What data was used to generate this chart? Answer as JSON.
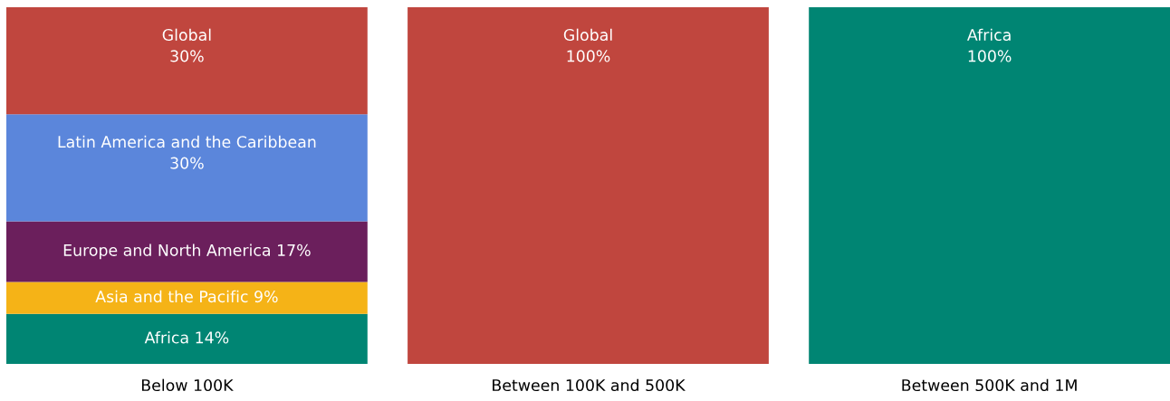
{
  "chart_data": {
    "type": "bar",
    "stacked": true,
    "categories": [
      "Below 100K",
      "Between 100K and 500K",
      "Between 500K and 1M"
    ],
    "series": [
      {
        "color": "#008573",
        "values": [
          14,
          null,
          100
        ],
        "value_labels": [
          "Africa 14%",
          null,
          "Africa\n100%"
        ]
      },
      {
        "color": "#f5b317",
        "values": [
          9,
          null,
          null
        ],
        "value_labels": [
          "Asia and the Pacific 9%",
          null,
          null
        ]
      },
      {
        "color": "#6b1f5c",
        "values": [
          17,
          null,
          null
        ],
        "value_labels": [
          "Europe and North America 17%",
          null,
          null
        ]
      },
      {
        "color": "#5b86db",
        "values": [
          30,
          null,
          null
        ],
        "value_labels": [
          "Latin America and the Caribbean\n30%",
          null,
          null
        ]
      },
      {
        "color": "#c0463e",
        "values": [
          30,
          100,
          null
        ],
        "value_labels": [
          "Global\n30%",
          "Global\n100%",
          null
        ]
      }
    ],
    "grid": false,
    "legend": false
  }
}
